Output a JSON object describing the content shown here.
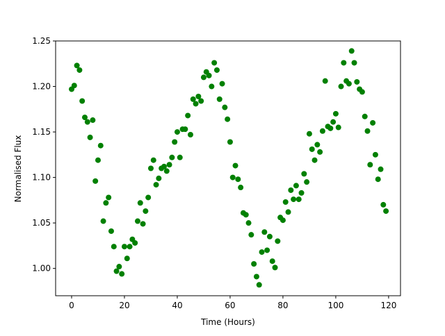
{
  "chart_data": {
    "type": "scatter",
    "x_label": "Time (Hours)",
    "y_label": "Normalised Flux",
    "series": [
      {
        "color": "#008000",
        "x": [
          0,
          1,
          2,
          3,
          4,
          5,
          6,
          7,
          8,
          9,
          10,
          11,
          12,
          13,
          14,
          15,
          16,
          17,
          18,
          19,
          20,
          21,
          22,
          23,
          24,
          25,
          26,
          27,
          28,
          29,
          30,
          31,
          32,
          33,
          34,
          35,
          36,
          37,
          38,
          39,
          40,
          41,
          42,
          43,
          44,
          45,
          46,
          47,
          48,
          49,
          50,
          51,
          52,
          53,
          54,
          55,
          56,
          57,
          58,
          59,
          60,
          61,
          62,
          63,
          64,
          65,
          66,
          67,
          68,
          69,
          70,
          71,
          72,
          73,
          74,
          75,
          76,
          77,
          78,
          79,
          80,
          81,
          82,
          83,
          84,
          85,
          86,
          87,
          88,
          89,
          90,
          91,
          92,
          93,
          94,
          95,
          96,
          97,
          98,
          99,
          100,
          101,
          102,
          103,
          104,
          105,
          106,
          107,
          108,
          109,
          110,
          111,
          112,
          113,
          114,
          115,
          116,
          117,
          118,
          119
        ],
        "values": [
          1.197,
          1.201,
          1.223,
          1.218,
          1.184,
          1.166,
          1.161,
          1.144,
          1.163,
          1.096,
          1.119,
          1.135,
          1.052,
          1.072,
          1.078,
          1.041,
          1.024,
          0.997,
          1.002,
          0.994,
          1.024,
          1.011,
          1.024,
          1.032,
          1.028,
          1.052,
          1.072,
          1.049,
          1.063,
          1.078,
          1.11,
          1.119,
          1.092,
          1.099,
          1.11,
          1.112,
          1.107,
          1.114,
          1.122,
          1.139,
          1.15,
          1.122,
          1.153,
          1.153,
          1.168,
          1.147,
          1.186,
          1.181,
          1.189,
          1.184,
          1.21,
          1.216,
          1.212,
          1.2,
          1.226,
          1.218,
          1.186,
          1.203,
          1.177,
          1.164,
          1.139,
          1.1,
          1.113,
          1.098,
          1.089,
          1.061,
          1.059,
          1.05,
          1.037,
          1.005,
          0.991,
          0.982,
          1.018,
          1.04,
          1.02,
          1.035,
          1.008,
          1.001,
          1.03,
          1.056,
          1.053,
          1.073,
          1.062,
          1.086,
          1.076,
          1.091,
          1.076,
          1.083,
          1.104,
          1.095,
          1.148,
          1.131,
          1.119,
          1.136,
          1.128,
          1.151,
          1.206,
          1.156,
          1.154,
          1.161,
          1.17,
          1.155,
          1.2,
          1.226,
          1.206,
          1.203,
          1.239,
          1.226,
          1.205,
          1.197,
          1.194,
          1.167,
          1.151,
          1.114,
          1.16,
          1.125,
          1.098,
          1.109,
          1.07,
          1.063
        ]
      }
    ],
    "xlim": [
      -6.05,
      124.5
    ],
    "xticks": [
      0,
      20,
      40,
      60,
      80,
      100,
      120
    ],
    "ylim": [
      0.97,
      1.25
    ],
    "yticks": [
      {
        "value": 1.0,
        "label": "1.00"
      },
      {
        "value": 1.05,
        "label": "1.05"
      },
      {
        "value": 1.1,
        "label": "1.10"
      },
      {
        "value": 1.15,
        "label": "1.15"
      },
      {
        "value": 1.2,
        "label": "1.20"
      },
      {
        "value": 1.25,
        "label": "1.25"
      }
    ]
  }
}
